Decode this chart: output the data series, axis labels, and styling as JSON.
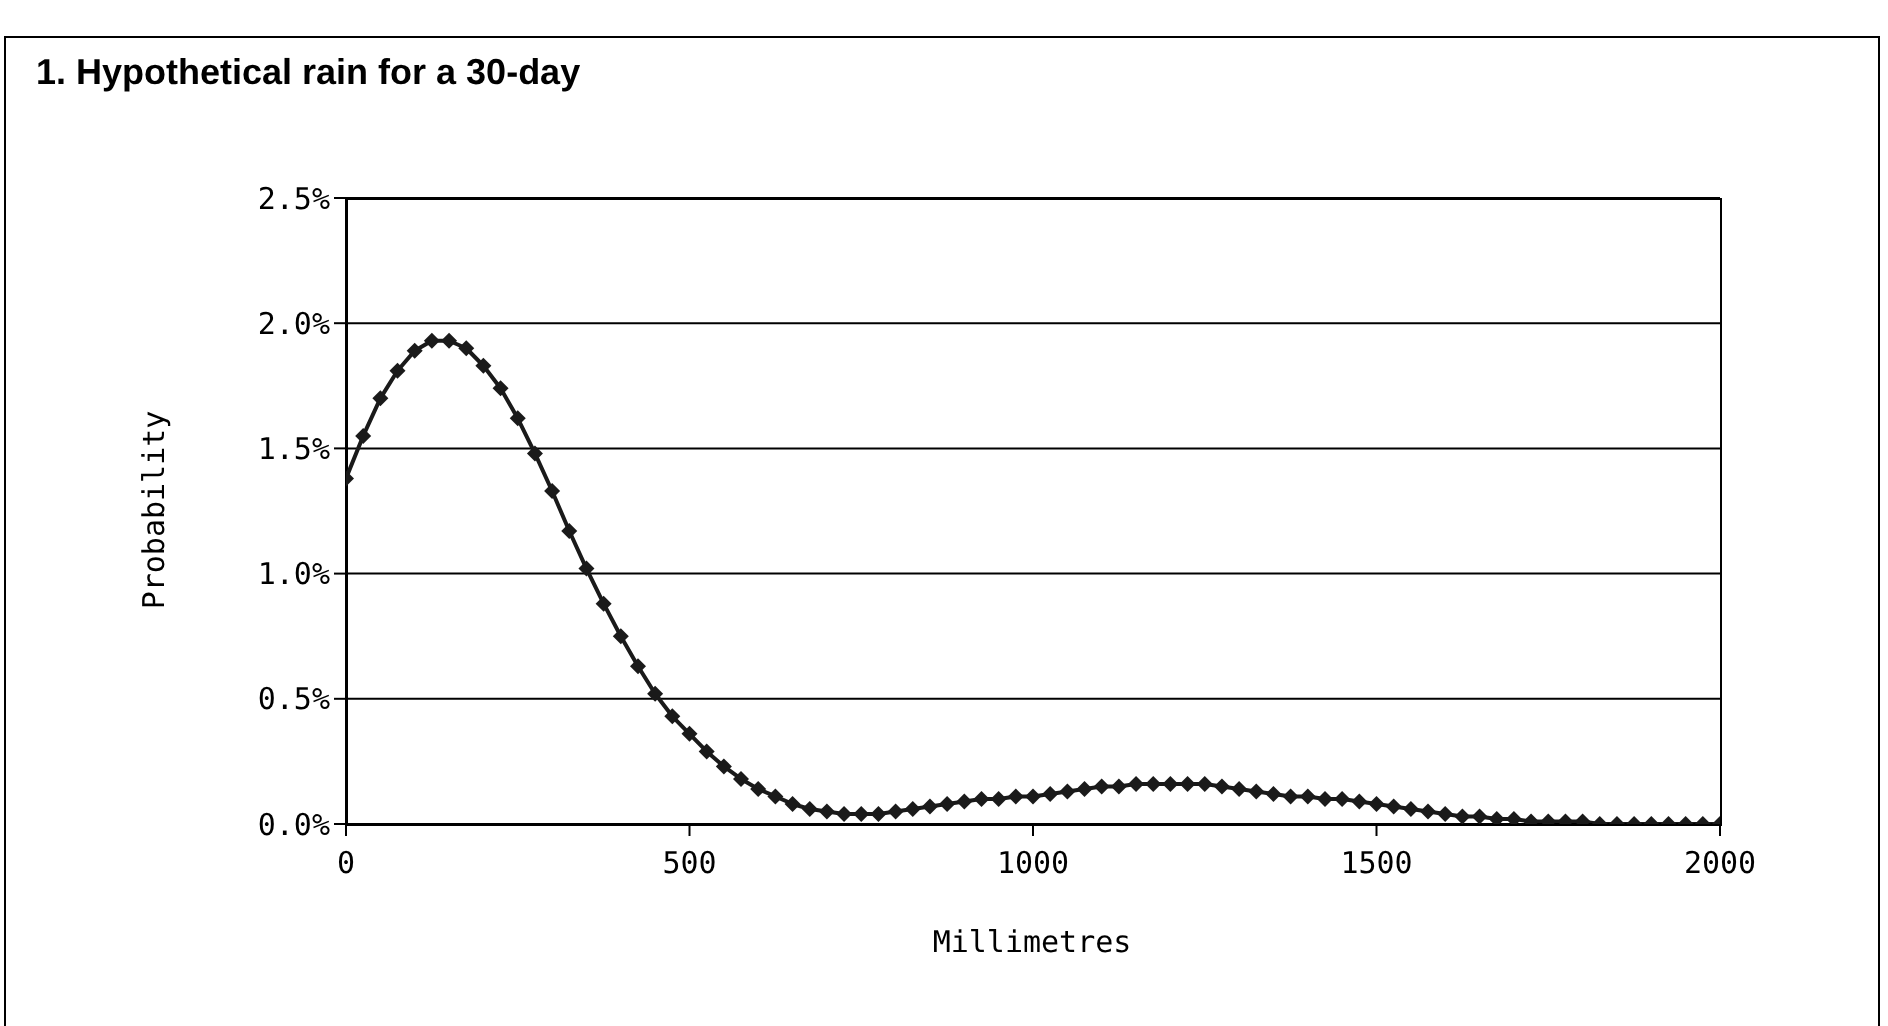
{
  "chart_data": {
    "type": "line",
    "title": "1.  Hypothetical rain for a 30-day",
    "xlabel": "Millimetres",
    "ylabel": "Probability",
    "x": [
      0,
      25,
      50,
      75,
      100,
      125,
      150,
      175,
      200,
      225,
      250,
      275,
      300,
      325,
      350,
      375,
      400,
      425,
      450,
      475,
      500,
      525,
      550,
      575,
      600,
      625,
      650,
      675,
      700,
      725,
      750,
      775,
      800,
      825,
      850,
      875,
      900,
      925,
      950,
      975,
      1000,
      1025,
      1050,
      1075,
      1100,
      1125,
      1150,
      1175,
      1200,
      1225,
      1250,
      1275,
      1300,
      1325,
      1350,
      1375,
      1400,
      1425,
      1450,
      1475,
      1500,
      1525,
      1550,
      1575,
      1600,
      1625,
      1650,
      1675,
      1700,
      1725,
      1750,
      1775,
      1800,
      1825,
      1850,
      1875,
      1900,
      1925,
      1950,
      1975,
      2000
    ],
    "series": [
      {
        "color": "#1a1a1a",
        "values": [
          1.38,
          1.55,
          1.7,
          1.81,
          1.89,
          1.93,
          1.93,
          1.9,
          1.83,
          1.74,
          1.62,
          1.48,
          1.33,
          1.17,
          1.02,
          0.88,
          0.75,
          0.63,
          0.52,
          0.43,
          0.36,
          0.29,
          0.23,
          0.18,
          0.14,
          0.11,
          0.08,
          0.06,
          0.05,
          0.04,
          0.04,
          0.04,
          0.05,
          0.06,
          0.07,
          0.08,
          0.09,
          0.1,
          0.1,
          0.11,
          0.11,
          0.12,
          0.13,
          0.14,
          0.15,
          0.15,
          0.16,
          0.16,
          0.16,
          0.16,
          0.16,
          0.15,
          0.14,
          0.13,
          0.12,
          0.11,
          0.11,
          0.1,
          0.1,
          0.09,
          0.08,
          0.07,
          0.06,
          0.05,
          0.04,
          0.03,
          0.03,
          0.02,
          0.02,
          0.01,
          0.01,
          0.01,
          0.01,
          0.0,
          0.0,
          0.0,
          0.0,
          0.0,
          0.0,
          0.0,
          0.0
        ]
      }
    ],
    "xlim": [
      0,
      2000
    ],
    "xticks": [
      0,
      500,
      1000,
      1500,
      2000
    ],
    "ylim": [
      0,
      2.5
    ],
    "yticks": [
      {
        "value": 0,
        "label": "0.0%"
      },
      {
        "value": 0.5,
        "label": "0.5%"
      },
      {
        "value": 1,
        "label": "1.0%"
      },
      {
        "value": 1.5,
        "label": "1.5%"
      },
      {
        "value": 2,
        "label": "2.0%"
      },
      {
        "value": 2.5,
        "label": "2.5%"
      }
    ],
    "grid": "y",
    "legend": false,
    "marker": "diamond",
    "line_style": "solid"
  }
}
